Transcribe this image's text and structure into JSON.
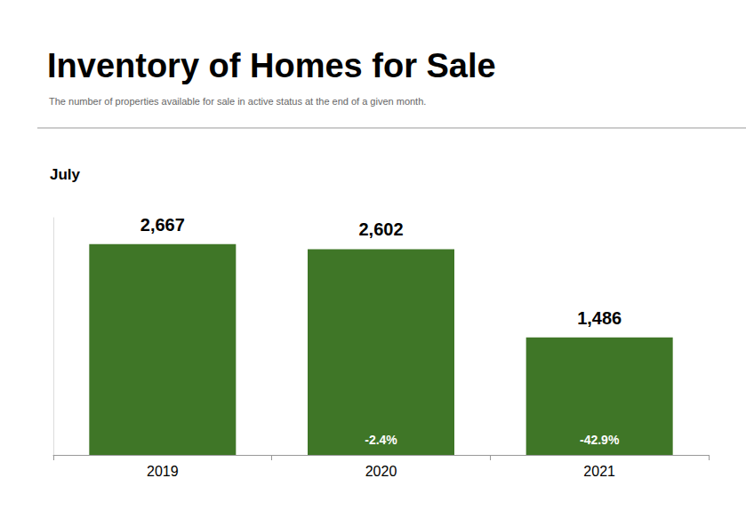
{
  "chart_data": {
    "type": "bar",
    "title": "Inventory of Homes for Sale",
    "subtitle": "The number of properties available for sale in active status at the end of a given month.",
    "panel_title": "July",
    "categories": [
      "2019",
      "2020",
      "2021"
    ],
    "values": [
      2667,
      2602,
      1486
    ],
    "value_labels": [
      "2,667",
      "2,602",
      "1,486"
    ],
    "changes": [
      null,
      -2.4,
      -42.9
    ],
    "change_labels": [
      null,
      "-2.4%",
      "-42.9%"
    ],
    "color": "#3f7627",
    "ylim": [
      0,
      3000
    ],
    "grid": false,
    "data_labels": true,
    "tick_labels": "x"
  }
}
